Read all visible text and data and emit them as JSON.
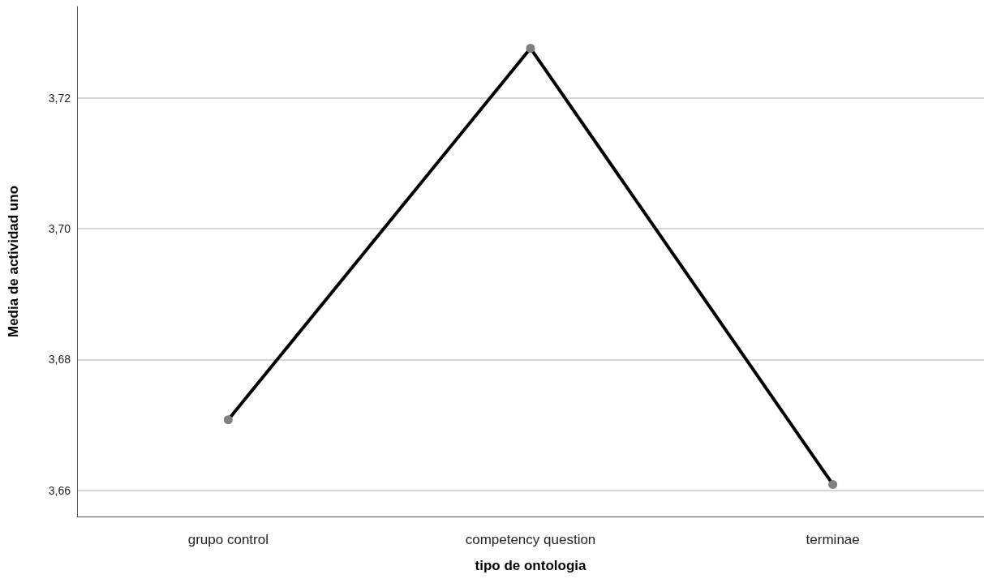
{
  "chart_data": {
    "type": "line",
    "xlabel": "tipo de ontologia",
    "ylabel": "Media de actividad uno",
    "categories": [
      "grupo control",
      "competency question",
      "terminae"
    ],
    "series": [
      {
        "color": "#000000",
        "values": [
          3.6708,
          3.7276,
          3.6609
        ]
      }
    ],
    "ylim": [
      3.656,
      3.734
    ],
    "yticks": [
      {
        "value": 3.66,
        "label": "3,66"
      },
      {
        "value": 3.68,
        "label": "3,68"
      },
      {
        "value": 3.7,
        "label": "3,70"
      },
      {
        "value": 3.72,
        "label": "3,72"
      }
    ],
    "grid": "y",
    "marker": "circle",
    "line_style": "solid"
  }
}
